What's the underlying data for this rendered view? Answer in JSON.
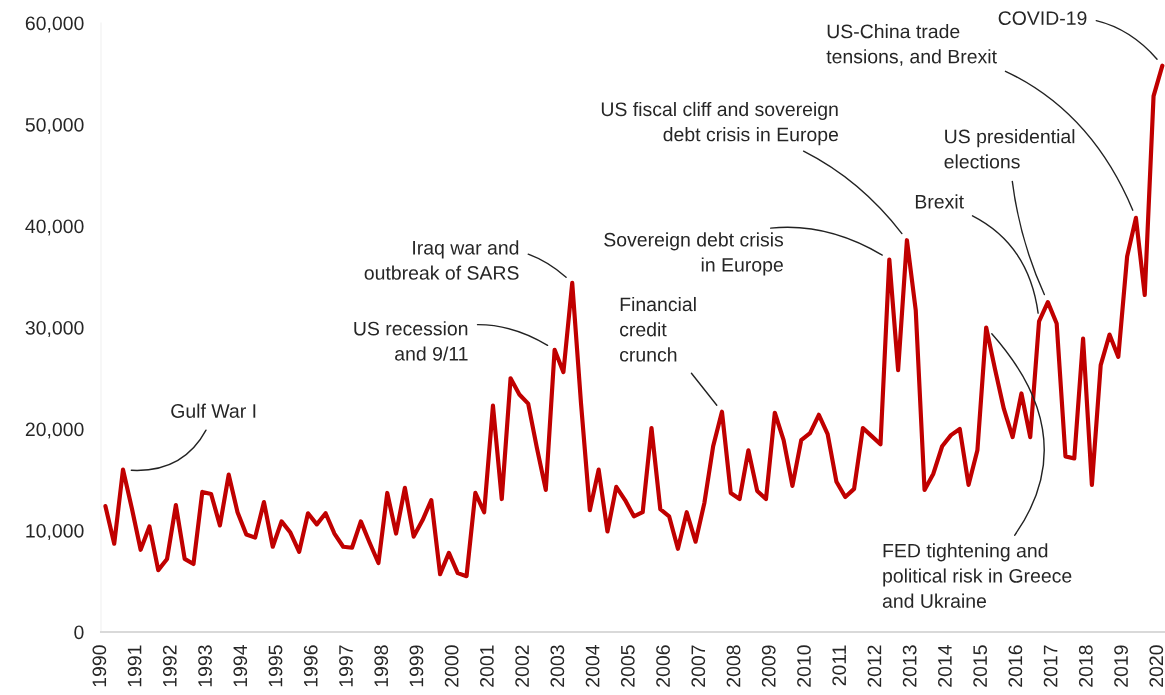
{
  "chart_data": {
    "type": "line",
    "x": [
      1990.125,
      1990.375,
      1990.625,
      1990.875,
      1991.125,
      1991.375,
      1991.625,
      1991.875,
      1992.125,
      1992.375,
      1992.625,
      1992.875,
      1993.125,
      1993.375,
      1993.625,
      1993.875,
      1994.125,
      1994.375,
      1994.625,
      1994.875,
      1995.125,
      1995.375,
      1995.625,
      1995.875,
      1996.125,
      1996.375,
      1996.625,
      1996.875,
      1997.125,
      1997.375,
      1997.625,
      1997.875,
      1998.125,
      1998.375,
      1998.625,
      1998.875,
      1999.125,
      1999.375,
      1999.625,
      1999.875,
      2000.125,
      2000.375,
      2000.625,
      2000.875,
      2001.125,
      2001.375,
      2001.625,
      2001.875,
      2002.125,
      2002.375,
      2002.625,
      2002.875,
      2003.125,
      2003.375,
      2003.625,
      2003.875,
      2004.125,
      2004.375,
      2004.625,
      2004.875,
      2005.125,
      2005.375,
      2005.625,
      2005.875,
      2006.125,
      2006.375,
      2006.625,
      2006.875,
      2007.125,
      2007.375,
      2007.625,
      2007.875,
      2008.125,
      2008.375,
      2008.625,
      2008.875,
      2009.125,
      2009.375,
      2009.625,
      2009.875,
      2010.125,
      2010.375,
      2010.625,
      2010.875,
      2011.125,
      2011.375,
      2011.625,
      2011.875,
      2012.125,
      2012.375,
      2012.625,
      2012.875,
      2013.125,
      2013.375,
      2013.625,
      2013.875,
      2014.125,
      2014.375,
      2014.625,
      2014.875,
      2015.125,
      2015.375,
      2015.625,
      2015.875,
      2016.125,
      2016.375,
      2016.625,
      2016.875,
      2017.125,
      2017.375,
      2017.625,
      2017.875,
      2018.125,
      2018.375,
      2018.625,
      2018.875,
      2019.125,
      2019.375,
      2019.625,
      2019.875,
      2020.125
    ],
    "series": [
      {
        "color": "#c00000",
        "values": [
          12400,
          8700,
          16000,
          12200,
          8100,
          10400,
          6100,
          7200,
          12500,
          7200,
          6700,
          13800,
          13600,
          10500,
          15500,
          11800,
          9600,
          9300,
          12800,
          8400,
          10900,
          9800,
          7900,
          11700,
          10600,
          11700,
          9700,
          8400,
          8300,
          10900,
          8800,
          6800,
          13700,
          9700,
          14200,
          9400,
          11000,
          13000,
          5700,
          7800,
          5800,
          5500,
          13700,
          11800,
          22300,
          13100,
          25000,
          23400,
          22500,
          18100,
          14000,
          27800,
          25600,
          34400,
          22500,
          12000,
          16000,
          9900,
          14300,
          13000,
          11400,
          11800,
          20100,
          12100,
          11400,
          8200,
          11800,
          8900,
          12700,
          18300,
          21700,
          13700,
          13100,
          17900,
          13900,
          13100,
          21600,
          18900,
          14400,
          18900,
          19600,
          21400,
          19500,
          14800,
          13300,
          14100,
          20100,
          19300,
          18500,
          36700,
          25800,
          38600,
          31700,
          14000,
          15600,
          18300,
          19400,
          20000,
          14500,
          17900,
          30000,
          25900,
          22000,
          19200,
          23500,
          19200,
          30600,
          32500,
          30400,
          17300,
          17100,
          28900,
          14500,
          26300,
          29300,
          27100,
          37000,
          40800,
          33200,
          52800,
          55800
        ]
      }
    ],
    "xlim": [
      1990,
      2020.2
    ],
    "xticks": [
      1990,
      1991,
      1992,
      1993,
      1994,
      1995,
      1996,
      1997,
      1998,
      1999,
      2000,
      2001,
      2002,
      2003,
      2004,
      2005,
      2006,
      2007,
      2008,
      2009,
      2010,
      2011,
      2012,
      2013,
      2014,
      2015,
      2016,
      2017,
      2018,
      2019,
      2020
    ],
    "ylim": [
      0,
      60000
    ],
    "yticks": [
      0,
      {
        "value": 10000,
        "label": "10,000"
      },
      {
        "value": 20000,
        "label": "20,000"
      },
      {
        "value": 30000,
        "label": "30,000"
      },
      {
        "value": 40000,
        "label": "40,000"
      },
      {
        "value": 50000,
        "label": "50,000"
      },
      {
        "value": 60000,
        "label": "60,000"
      }
    ],
    "grid": false,
    "legend": false,
    "marker": "none",
    "line_style": "solid",
    "annotations": [
      {
        "text": "Gulf War I",
        "x": 1990.625,
        "y": 16000
      },
      {
        "text": "US recession\nand 9/11",
        "x": 2002.875,
        "y": 27800
      },
      {
        "text": "Iraq war and\noutbreak of SARS",
        "x": 2003.375,
        "y": 34400
      },
      {
        "text": "Financial\ncredit\ncrunch",
        "x": 2007.625,
        "y": 21700
      },
      {
        "text": "Sovereign debt crisis\nin Europe",
        "x": 2012.375,
        "y": 36700
      },
      {
        "text": "US fiscal cliff and sovereign\ndebt crisis in Europe",
        "x": 2012.875,
        "y": 38600
      },
      {
        "text": "FED tightening and\npolitical risk in Greece\nand Ukraine",
        "x": 2015.125,
        "y": 30000
      },
      {
        "text": "Brexit",
        "x": 2016.625,
        "y": 30600
      },
      {
        "text": "US presidential\nelections",
        "x": 2016.875,
        "y": 32500
      },
      {
        "text": "US-China trade\ntensions, and Brexit",
        "x": 2019.375,
        "y": 40800
      },
      {
        "text": "COVID-19",
        "x": 2020.125,
        "y": 55800
      }
    ]
  }
}
